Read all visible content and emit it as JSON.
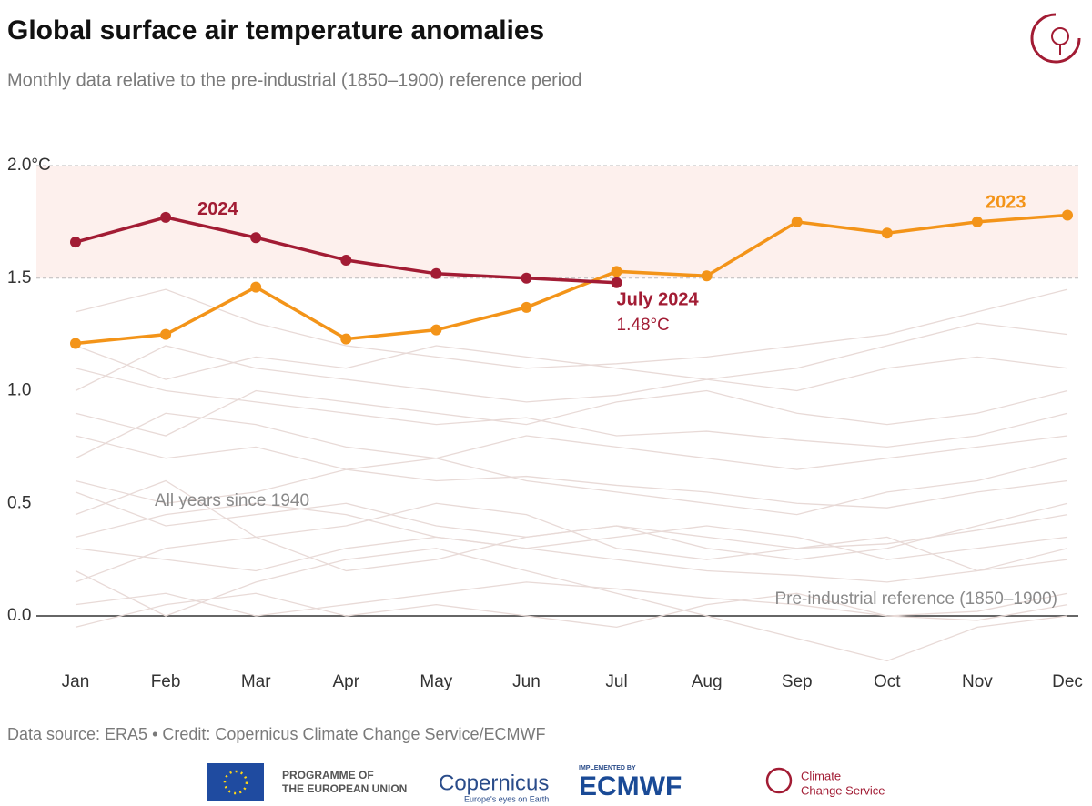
{
  "chart_data": {
    "type": "line",
    "title": "Global surface air temperature anomalies",
    "subtitle": "Monthly data relative to the pre-industrial (1850–1900) reference period",
    "categories": [
      "Jan",
      "Feb",
      "Mar",
      "Apr",
      "May",
      "Jun",
      "Jul",
      "Aug",
      "Sep",
      "Oct",
      "Nov",
      "Dec"
    ],
    "series": [
      {
        "name": "2023",
        "color": "#f39419",
        "values": [
          1.21,
          1.25,
          1.46,
          1.23,
          1.27,
          1.37,
          1.53,
          1.51,
          1.75,
          1.7,
          1.75,
          1.78
        ]
      },
      {
        "name": "2024",
        "color": "#a21c34",
        "values": [
          1.66,
          1.77,
          1.68,
          1.58,
          1.52,
          1.5,
          1.48,
          null,
          null,
          null,
          null,
          null
        ]
      }
    ],
    "background_series": {
      "color": "#e8dad7",
      "lines": [
        [
          0.05,
          0.1,
          0.0,
          0.05,
          0.1,
          0.15,
          0.12,
          0.08,
          0.05,
          0.0,
          0.02,
          0.1
        ],
        [
          0.3,
          0.25,
          0.2,
          0.3,
          0.35,
          0.3,
          0.25,
          0.2,
          0.18,
          0.15,
          0.2,
          0.25
        ],
        [
          0.55,
          0.4,
          0.45,
          0.5,
          0.4,
          0.35,
          0.4,
          0.35,
          0.3,
          0.32,
          0.38,
          0.45
        ],
        [
          0.8,
          0.7,
          0.75,
          0.65,
          0.6,
          0.62,
          0.58,
          0.55,
          0.5,
          0.48,
          0.55,
          0.6
        ],
        [
          1.1,
          1.0,
          0.95,
          0.9,
          0.85,
          0.88,
          0.8,
          0.82,
          0.78,
          0.75,
          0.8,
          0.9
        ],
        [
          1.35,
          1.45,
          1.3,
          1.2,
          1.15,
          1.1,
          1.12,
          1.15,
          1.2,
          1.25,
          1.35,
          1.45
        ],
        [
          1.0,
          1.2,
          1.1,
          1.05,
          1.0,
          0.95,
          0.98,
          1.05,
          1.1,
          1.2,
          1.3,
          1.25
        ],
        [
          0.2,
          0.0,
          0.15,
          0.25,
          0.3,
          0.2,
          0.1,
          0.0,
          -0.1,
          -0.2,
          -0.05,
          0.0
        ],
        [
          0.45,
          0.6,
          0.35,
          0.4,
          0.5,
          0.45,
          0.3,
          0.25,
          0.3,
          0.35,
          0.2,
          0.3
        ],
        [
          0.7,
          0.9,
          0.85,
          0.75,
          0.7,
          0.8,
          0.75,
          0.7,
          0.65,
          0.7,
          0.75,
          0.8
        ],
        [
          0.15,
          0.3,
          0.35,
          0.2,
          0.25,
          0.35,
          0.4,
          0.3,
          0.25,
          0.3,
          0.4,
          0.5
        ],
        [
          0.9,
          0.8,
          1.0,
          0.95,
          0.9,
          0.85,
          0.95,
          1.0,
          0.9,
          0.85,
          0.9,
          1.0
        ],
        [
          0.6,
          0.5,
          0.55,
          0.65,
          0.7,
          0.6,
          0.55,
          0.5,
          0.45,
          0.55,
          0.6,
          0.7
        ],
        [
          0.35,
          0.45,
          0.5,
          0.45,
          0.35,
          0.3,
          0.35,
          0.4,
          0.35,
          0.25,
          0.3,
          0.35
        ],
        [
          1.2,
          1.05,
          1.15,
          1.1,
          1.2,
          1.15,
          1.1,
          1.05,
          1.0,
          1.1,
          1.15,
          1.1
        ],
        [
          -0.05,
          0.05,
          0.1,
          0.0,
          0.05,
          0.0,
          -0.05,
          0.05,
          0.1,
          0.0,
          -0.02,
          0.05
        ]
      ]
    },
    "highlight_band": [
      1.5,
      2.0
    ],
    "ylim": [
      -0.3,
      2.0
    ],
    "yticks": [
      {
        "value": 0,
        "label": "0.0"
      },
      0.5,
      {
        "value": 1,
        "label": "1.0"
      },
      1.5,
      {
        "value": 2,
        "label": "2.0°C"
      }
    ],
    "annotations": {
      "label_2024": "2024",
      "label_2023": "2023",
      "latest": "July 2024",
      "latest_value": "1.48°C",
      "all_years": "All years since 1940",
      "reference": "Pre-industrial reference (1850–1900)"
    },
    "source": "Data source: ERA5 • Credit: Copernicus Climate Change Service/ECMWF"
  },
  "footer": {
    "eu_line1": "PROGRAMME OF",
    "eu_line2": "THE EUROPEAN UNION",
    "copernicus": "Copernicus",
    "copernicus_tag": "Europe's eyes on Earth",
    "implemented": "IMPLEMENTED BY",
    "ecmwf": "ECMWF",
    "c3s_line1": "Climate",
    "c3s_line2": "Change Service"
  }
}
